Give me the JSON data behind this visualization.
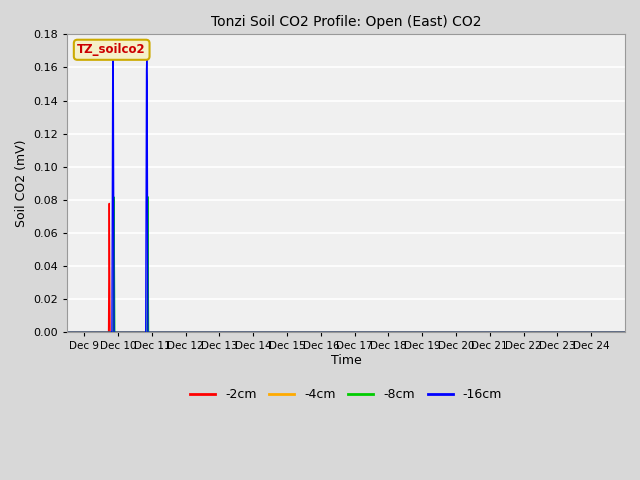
{
  "title": "Tonzi Soil CO2 Profile: Open (East) CO2",
  "xlabel": "Time",
  "ylabel": "Soil CO2 (mV)",
  "ylim": [
    0,
    0.18
  ],
  "outer_bg": "#d8d8d8",
  "plot_bg": "#f0f0f0",
  "grid_color": "#ffffff",
  "watermark_text": "TZ_soilco2",
  "watermark_bg": "#f5f0c8",
  "watermark_border": "#ccaa00",
  "legend_entries": [
    "-2cm",
    "-4cm",
    "-8cm",
    "-16cm"
  ],
  "legend_colors": [
    "#ff0000",
    "#ffaa00",
    "#00cc00",
    "#0000ff"
  ],
  "xtick_labels": [
    "Dec 9",
    "Dec 10",
    "Dec 11",
    "Dec 12",
    "Dec 13",
    "Dec 14",
    "Dec 15",
    "Dec 16",
    "Dec 17",
    "Dec 18",
    "Dec 19",
    "Dec 20",
    "Dec 21",
    "Dec 22",
    "Dec 23",
    "Dec 24"
  ],
  "xtick_positions": [
    9,
    10,
    11,
    12,
    13,
    14,
    15,
    16,
    17,
    18,
    19,
    20,
    21,
    22,
    23,
    24
  ],
  "yticks": [
    0.0,
    0.02,
    0.04,
    0.06,
    0.08,
    0.1,
    0.12,
    0.14,
    0.16,
    0.18
  ],
  "series_colors": [
    "#ff0000",
    "#ffaa00",
    "#00cc00",
    "#0000ff"
  ],
  "blue_spike1": {
    "x": [
      9.68,
      9.82,
      9.83,
      9.84,
      9.85,
      9.86,
      9.87,
      9.88,
      10.02
    ],
    "y": [
      0.0,
      0.0,
      0.078,
      0.155,
      0.165,
      0.155,
      0.078,
      0.0,
      0.0
    ]
  },
  "blue_spike2": {
    "x": [
      10.78,
      10.82,
      10.83,
      10.84,
      10.85,
      10.86,
      10.87,
      10.88,
      11.05
    ],
    "y": [
      0.0,
      0.0,
      0.078,
      0.155,
      0.165,
      0.155,
      0.078,
      0.0,
      0.0
    ]
  },
  "green_spike1": {
    "x": [
      9.82,
      9.86,
      9.87,
      9.88,
      9.89,
      9.9,
      9.94,
      10.02
    ],
    "y": [
      0.0,
      0.0,
      0.04,
      0.083,
      0.04,
      0.0,
      0.0,
      0.0
    ]
  },
  "green_spike2": {
    "x": [
      10.82,
      10.86,
      10.87,
      10.88,
      10.89,
      10.9,
      10.94,
      11.05
    ],
    "y": [
      0.0,
      0.0,
      0.04,
      0.083,
      0.04,
      0.0,
      0.0,
      0.0
    ]
  },
  "red_spike1": {
    "x": [
      9.68,
      9.72,
      9.73,
      9.74,
      9.75,
      9.76,
      9.77,
      9.82
    ],
    "y": [
      0.0,
      0.0,
      0.04,
      0.078,
      0.04,
      0.0,
      0.0,
      0.0
    ]
  },
  "xlim": [
    8.5,
    25.0
  ]
}
